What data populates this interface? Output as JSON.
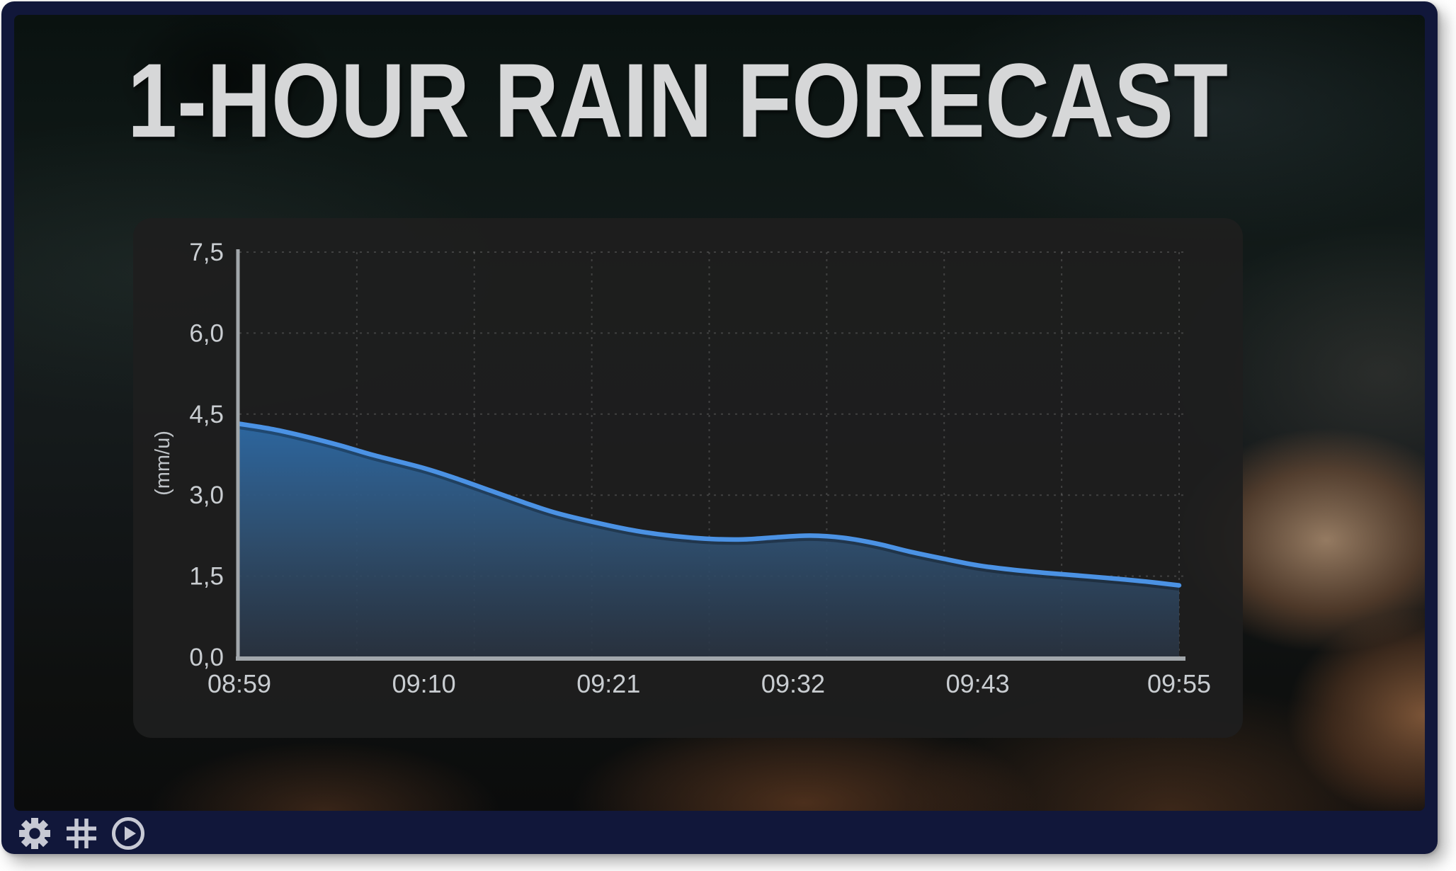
{
  "page": {
    "title": "1-HOUR RAIN FORECAST"
  },
  "frame": {
    "border_color": "#11173a",
    "page_background": "#ffffff"
  },
  "panel": {
    "background": "rgba(30,30,30,0.93)"
  },
  "toolbar": {
    "icon_color": "#c7c9d4",
    "icons": [
      {
        "name": "settings-gear-icon"
      },
      {
        "name": "grid-icon"
      },
      {
        "name": "play-circle-icon"
      }
    ]
  },
  "chart_data": {
    "type": "area",
    "title": "",
    "xlabel": "",
    "ylabel": "(mm/u)",
    "ylim": [
      0,
      7.5
    ],
    "xlim_minutes": [
      0,
      56
    ],
    "grid": {
      "h_lines": [
        1.5,
        3.0,
        4.5,
        6.0,
        7.5
      ],
      "v_every_minutes": 7,
      "style": "dashed"
    },
    "legend": "none",
    "y_ticks": [
      {
        "label": "0,0",
        "value": 0.0
      },
      {
        "label": "1,5",
        "value": 1.5
      },
      {
        "label": "3,0",
        "value": 3.0
      },
      {
        "label": "4,5",
        "value": 4.5
      },
      {
        "label": "6,0",
        "value": 6.0
      },
      {
        "label": "7,5",
        "value": 7.5
      }
    ],
    "x_ticks": [
      {
        "label": "08:59",
        "minute": 0
      },
      {
        "label": "09:10",
        "minute": 11
      },
      {
        "label": "09:21",
        "minute": 22
      },
      {
        "label": "09:32",
        "minute": 33
      },
      {
        "label": "09:43",
        "minute": 44
      },
      {
        "label": "09:55",
        "minute": 56
      }
    ],
    "series": [
      {
        "name": "rain-intensity",
        "minutes": [
          0,
          2,
          4,
          6,
          8,
          11,
          13,
          15,
          17,
          19,
          22,
          24,
          26,
          28,
          30,
          32,
          34,
          36,
          38,
          40,
          42,
          44,
          46,
          48,
          50,
          52,
          54,
          56
        ],
        "values": [
          4.32,
          4.22,
          4.08,
          3.92,
          3.74,
          3.5,
          3.3,
          3.08,
          2.86,
          2.66,
          2.44,
          2.32,
          2.24,
          2.19,
          2.18,
          2.22,
          2.25,
          2.21,
          2.1,
          1.95,
          1.82,
          1.7,
          1.62,
          1.56,
          1.51,
          1.46,
          1.4,
          1.33
        ]
      }
    ],
    "colors": {
      "line": "#4b92e4",
      "fill_top": "#2d69a4",
      "fill_mid": "#305478",
      "fill_bottom": "#2a3442",
      "axis": "#a2a7ab",
      "grid": "rgba(255,255,255,0.16)",
      "tick_text": "#c9cdd1",
      "ylabel_text": "#bfc3c7"
    }
  }
}
